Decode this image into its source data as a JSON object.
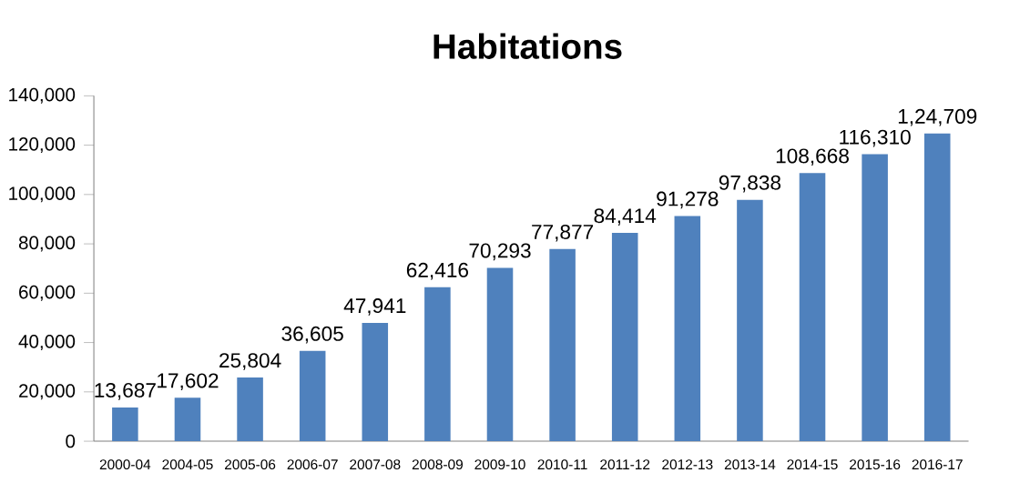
{
  "chart_data": {
    "type": "bar",
    "title": "Habitations",
    "categories": [
      "2000-04",
      "2004-05",
      "2005-06",
      "2006-07",
      "2007-08",
      "2008-09",
      "2009-10",
      "2010-11",
      "2011-12",
      "2012-13",
      "2013-14",
      "2014-15",
      "2015-16",
      "2016-17"
    ],
    "values": [
      13687,
      17602,
      25804,
      36605,
      47941,
      62416,
      70293,
      77877,
      84414,
      91278,
      97838,
      108668,
      116310,
      124709
    ],
    "value_labels": [
      "13,687",
      "17,602",
      "25,804",
      "36,605",
      "47,941",
      "62,416",
      "70,293",
      "77,877",
      "84,414",
      "91,278",
      "97,838",
      "108,668",
      "116,310",
      "1,24,709"
    ],
    "color": "#4f81bd",
    "ylim": [
      0,
      140000
    ],
    "yticks": [
      {
        "value": 0,
        "label": "0"
      },
      {
        "value": 20000,
        "label": "20,000"
      },
      {
        "value": 40000,
        "label": "40,000"
      },
      {
        "value": 60000,
        "label": "60,000"
      },
      {
        "value": 80000,
        "label": "80,000"
      },
      {
        "value": 100000,
        "label": "100,000"
      },
      {
        "value": 120000,
        "label": "120,000"
      },
      {
        "value": 140000,
        "label": "140,000"
      }
    ],
    "grid": false
  }
}
